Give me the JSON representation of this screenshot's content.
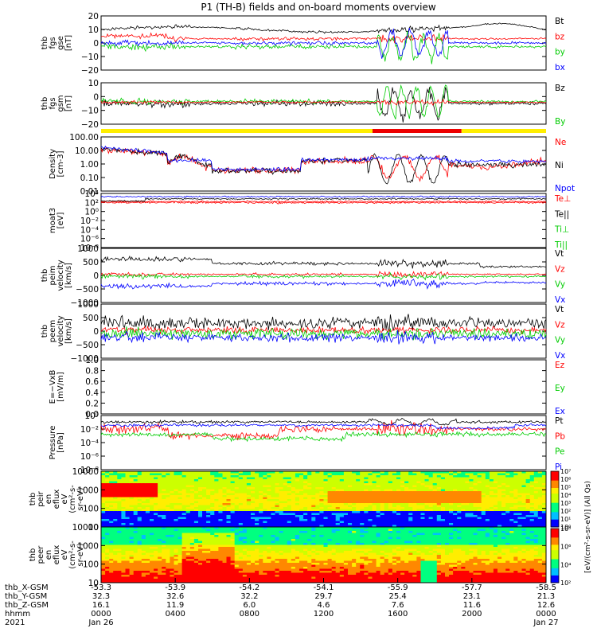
{
  "title": "P1  (TH-B) fields and on-board moments overview",
  "year": "2021",
  "footer_rows": [
    {
      "label": "thb_X-GSM",
      "values": [
        "-53.3",
        "-53.9",
        "-54.2",
        "-54.1",
        "-55.9",
        "-57.7",
        "-58.5"
      ]
    },
    {
      "label": "thb_Y-GSM",
      "values": [
        "32.3",
        "32.6",
        "32.2",
        "29.7",
        "25.4",
        "23.1",
        "21.3"
      ]
    },
    {
      "label": "thb_Z-GSM",
      "values": [
        "16.1",
        "11.9",
        "6.0",
        "4.6",
        "7.6",
        "11.6",
        "12.6"
      ]
    },
    {
      "label": "hhmm",
      "values": [
        "0000",
        "0400",
        "0800",
        "1200",
        "1600",
        "2000",
        "0000"
      ]
    }
  ],
  "date_start": "Jan 26",
  "date_end": "Jan 27",
  "colorbar_label": "[eV/(cm²-s-sr-eV)] (All Qs)",
  "colorbar_ticks": [
    "10⁷",
    "10⁶",
    "10⁵",
    "10⁴",
    "10³",
    "10²",
    "10¹",
    "10⁰"
  ],
  "colorbar2_ticks": [
    "10⁸",
    "10⁶",
    "10⁴",
    "10²"
  ],
  "chart_data": [
    {
      "type": "line",
      "id": "fgs_gse",
      "ylabel_lines": [
        "thb",
        "fgs",
        "gse",
        "[nT]"
      ],
      "ylim": [
        -20,
        20
      ],
      "ticks": [
        "20",
        "10",
        "0",
        "−10",
        "−20"
      ],
      "legend": [
        {
          "name": "Bt",
          "color": "#000000"
        },
        {
          "name": "bz",
          "color": "#ff0000"
        },
        {
          "name": "by",
          "color": "#00cc00"
        },
        {
          "name": "bx",
          "color": "#0000ff"
        }
      ]
    },
    {
      "type": "line",
      "id": "fgs_gsm",
      "ylabel_lines": [
        "thb",
        "fgs",
        "gsm",
        "[nT]"
      ],
      "ylim": [
        -25,
        15
      ],
      "ticks": [
        "10",
        "0",
        "−10",
        "−20"
      ],
      "legend": [
        {
          "name": "Bz",
          "color": "#000000"
        },
        {
          "name": "By",
          "color": "#00cc00"
        }
      ]
    },
    {
      "type": "line",
      "id": "density",
      "ylabel_lines": [
        "Density",
        "[cm-3]"
      ],
      "scale": "log",
      "ylim": [
        0.01,
        100
      ],
      "ticks": [
        "100.00",
        "10.00",
        "1.00",
        "0.10",
        "0.01"
      ],
      "legend": [
        {
          "name": "Ne",
          "color": "#ff0000"
        },
        {
          "name": "Ni",
          "color": "#000000"
        },
        {
          "name": "Npot",
          "color": "#0000ff"
        }
      ]
    },
    {
      "type": "line",
      "id": "temperature",
      "ylabel_lines": [
        "moat3",
        "[eV]"
      ],
      "scale": "log",
      "ticks": [
        "10⁴",
        "10²",
        "10⁰",
        "10⁻²",
        "10⁻⁴",
        "10⁻⁶",
        "10⁻⁸"
      ],
      "legend": [
        {
          "name": "Te⊥",
          "color": "#ff0000"
        },
        {
          "name": "Te||",
          "color": "#000000"
        },
        {
          "name": "Ti⊥",
          "color": "#00cc00"
        },
        {
          "name": "Ti||",
          "color": "#00cc00"
        }
      ]
    },
    {
      "type": "line",
      "id": "peim_velocity",
      "ylabel_lines": [
        "thb",
        "peim",
        "velocity",
        "[km/s]"
      ],
      "ylim": [
        -1000,
        1000
      ],
      "ticks": [
        "1000",
        "500",
        "0",
        "−500",
        "−1000"
      ],
      "legend": [
        {
          "name": "Vt",
          "color": "#000000"
        },
        {
          "name": "Vz",
          "color": "#ff0000"
        },
        {
          "name": "Vy",
          "color": "#00cc00"
        },
        {
          "name": "Vx",
          "color": "#0000ff"
        }
      ]
    },
    {
      "type": "line",
      "id": "peem_velocity",
      "ylabel_lines": [
        "thb",
        "peem",
        "velocity",
        "[km/s]"
      ],
      "ylim": [
        -1500,
        1500
      ],
      "ticks": [
        "1000",
        "500",
        "0",
        "−500",
        "−1000"
      ],
      "legend": [
        {
          "name": "Vt",
          "color": "#000000"
        },
        {
          "name": "Vz",
          "color": "#ff0000"
        },
        {
          "name": "Vy",
          "color": "#00cc00"
        },
        {
          "name": "Vx",
          "color": "#0000ff"
        }
      ]
    },
    {
      "type": "line",
      "id": "efield",
      "ylabel_lines": [
        "E=−VxB",
        "[mV/m]"
      ],
      "ylim": [
        0,
        1
      ],
      "ticks": [
        "1.0",
        "0.8",
        "0.6",
        "0.4",
        "0.2",
        "0.0"
      ],
      "legend": [
        {
          "name": "Ez",
          "color": "#ff0000"
        },
        {
          "name": "Ey",
          "color": "#00cc00"
        },
        {
          "name": "Ex",
          "color": "#0000ff"
        }
      ]
    },
    {
      "type": "line",
      "id": "pressure",
      "ylabel_lines": [
        "Pressure",
        "[nPa]"
      ],
      "scale": "log",
      "ticks": [
        "10⁰",
        "10⁻²",
        "10⁻⁴",
        "10⁻⁶",
        "10⁻⁸"
      ],
      "legend": [
        {
          "name": "Pt",
          "color": "#000000"
        },
        {
          "name": "Pb",
          "color": "#ff0000"
        },
        {
          "name": "Pe",
          "color": "#00cc00"
        },
        {
          "name": "Pi",
          "color": "#0000ff"
        }
      ]
    },
    {
      "type": "heatmap",
      "id": "peir_spec",
      "ylabel_lines": [
        "thb",
        "peir",
        "en",
        "eflux",
        "eV",
        "(cm²-s-",
        "sr-eV)"
      ],
      "scale": "log",
      "ticks": [
        "10000",
        "1000",
        "100",
        "10"
      ]
    },
    {
      "type": "heatmap",
      "id": "peer_spec",
      "ylabel_lines": [
        "thb",
        "peer",
        "en",
        "eflux",
        "eV",
        "(cm²-s-",
        "sr-eV)"
      ],
      "scale": "log",
      "ticks": [
        "10000",
        "1000",
        "100",
        "10"
      ]
    }
  ],
  "mode_bar": {
    "segments": [
      {
        "from": 0,
        "to": 0.61,
        "color": "#ffee00"
      },
      {
        "from": 0.61,
        "to": 0.81,
        "color": "#ee0000"
      },
      {
        "from": 0.81,
        "to": 1,
        "color": "#ffee00"
      }
    ]
  }
}
